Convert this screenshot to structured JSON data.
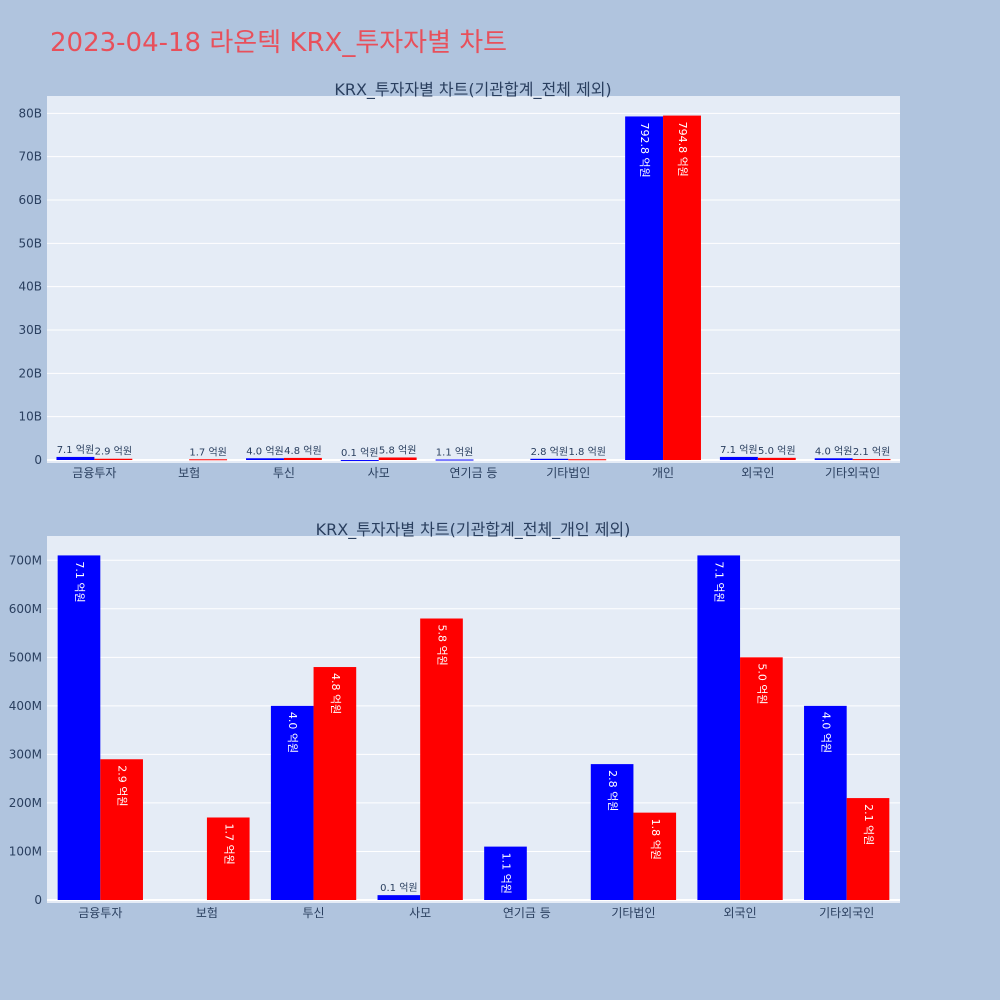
{
  "title": "2023-04-18 라온텍 KRX_투자자별 차트",
  "colors": {
    "buy": "#0000ff",
    "sell": "#ff0000",
    "plot_bg": "#e5ecf6",
    "page_bg": "#b0c4de"
  },
  "chart_data": [
    {
      "type": "bar",
      "title": "KRX_투자자별 차트(기관합계_전체 제외)",
      "categories": [
        "금융투자",
        "보험",
        "투신",
        "사모",
        "연기금 등",
        "기타법인",
        "개인",
        "외국인",
        "기타외국인"
      ],
      "series": [
        {
          "values": [
            710000000,
            0,
            400000000,
            10000000,
            110000000,
            280000000,
            79280000000,
            710000000,
            400000000
          ],
          "labels": [
            "7.1 억원",
            "",
            "4.0 억원",
            "0.1 억원",
            "1.1 억원",
            "2.8 억원",
            "792.8 억원",
            "7.1 억원",
            "4.0 억원"
          ]
        },
        {
          "values": [
            290000000,
            170000000,
            480000000,
            580000000,
            0,
            180000000,
            79480000000,
            500000000,
            210000000
          ],
          "labels": [
            "2.9 억원",
            "1.7 억원",
            "4.8 억원",
            "5.8 억원",
            "",
            "1.8 억원",
            "794.8 억원",
            "5.0 억원",
            "2.1 억원"
          ]
        }
      ],
      "ylim": [
        0,
        84000000000
      ],
      "yticks": [
        0,
        10000000000,
        20000000000,
        30000000000,
        40000000000,
        50000000000,
        60000000000,
        70000000000,
        80000000000
      ],
      "ytick_labels": [
        "0",
        "10B",
        "20B",
        "30B",
        "40B",
        "50B",
        "60B",
        "70B",
        "80B"
      ]
    },
    {
      "type": "bar",
      "title": "KRX_투자자별 차트(기관합계_전체_개인 제외)",
      "categories": [
        "금융투자",
        "보험",
        "투신",
        "사모",
        "연기금 등",
        "기타법인",
        "외국인",
        "기타외국인"
      ],
      "series": [
        {
          "values": [
            710000000,
            0,
            400000000,
            10000000,
            110000000,
            280000000,
            710000000,
            400000000
          ],
          "labels": [
            "7.1 억원",
            "",
            "4.0 억원",
            "0.1 억원",
            "1.1 억원",
            "2.8 억원",
            "7.1 억원",
            "4.0 억원"
          ]
        },
        {
          "values": [
            290000000,
            170000000,
            480000000,
            580000000,
            0,
            180000000,
            500000000,
            210000000
          ],
          "labels": [
            "2.9 억원",
            "1.7 억원",
            "4.8 억원",
            "5.8 억원",
            "",
            "1.8 억원",
            "5.0 억원",
            "2.1 억원"
          ]
        }
      ],
      "ylim": [
        0,
        750000000
      ],
      "yticks": [
        0,
        100000000,
        200000000,
        300000000,
        400000000,
        500000000,
        600000000,
        700000000
      ],
      "ytick_labels": [
        "0",
        "100M",
        "200M",
        "300M",
        "400M",
        "500M",
        "600M",
        "700M"
      ]
    }
  ]
}
